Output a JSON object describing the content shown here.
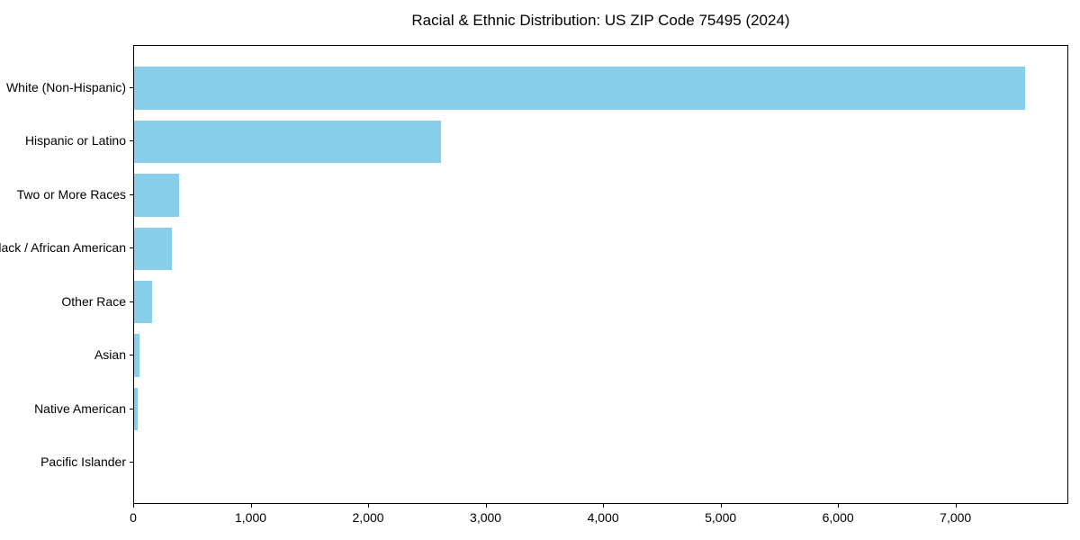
{
  "chart_data": {
    "type": "bar",
    "orientation": "horizontal",
    "title": "Racial & Ethnic Distribution: US ZIP Code 75495 (2024)",
    "categories": [
      "White (Non-Hispanic)",
      "Hispanic or Latino",
      "Two or More Races",
      "Black / African American",
      "Other Race",
      "Asian",
      "Native American",
      "Pacific Islander"
    ],
    "values": [
      7585,
      2610,
      380,
      325,
      150,
      48,
      28,
      0
    ],
    "xlabel": "",
    "ylabel": "",
    "xlim": [
      0,
      7960
    ],
    "x_ticks": [
      0,
      1000,
      2000,
      3000,
      4000,
      5000,
      6000,
      7000
    ],
    "x_tick_labels": [
      "0",
      "1,000",
      "2,000",
      "3,000",
      "4,000",
      "5,000",
      "6,000",
      "7,000"
    ],
    "bar_color": "#87CEEB",
    "text_color": "#000000",
    "background_color": "#ffffff",
    "grid": false,
    "legend": false
  }
}
